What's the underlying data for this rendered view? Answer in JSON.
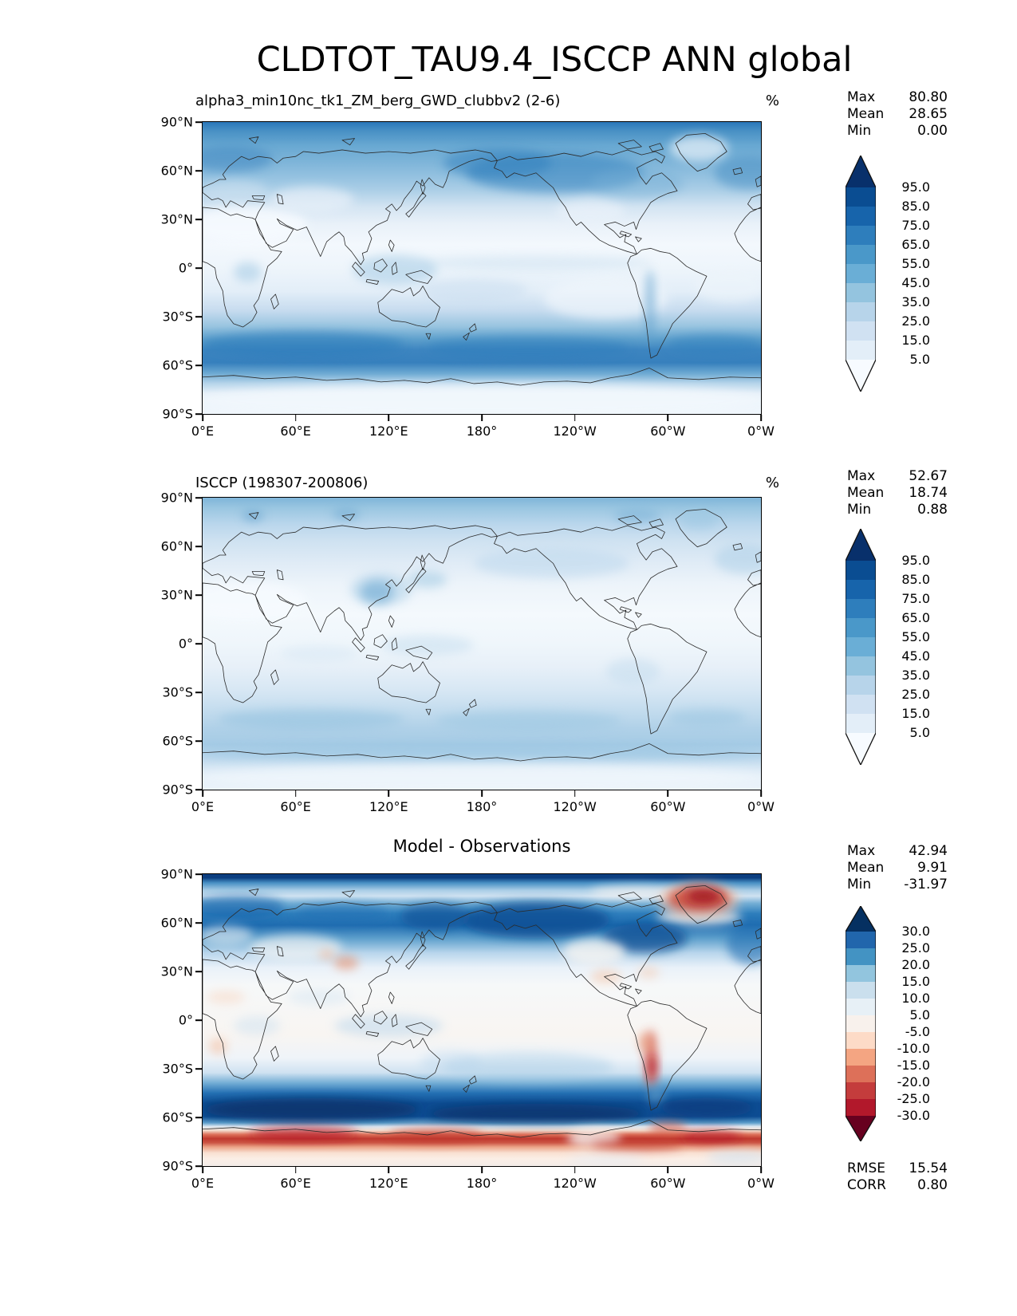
{
  "page": {
    "title": "CLDTOT_TAU9.4_ISCCP ANN global"
  },
  "axes": {
    "lat_ticks": [
      "90°N",
      "60°N",
      "30°N",
      "0°",
      "30°S",
      "60°S",
      "90°S"
    ],
    "lon_ticks": [
      "0°E",
      "60°E",
      "120°E",
      "180°",
      "120°W",
      "60°W",
      "0°W"
    ]
  },
  "panels": [
    {
      "id": "model",
      "title": "alpha3_min10nc_tk1_ZM_berg_GWD_clubbv2 (2-6)",
      "units": "%",
      "stats": [
        {
          "label": "Max",
          "value": "80.80"
        },
        {
          "label": "Mean",
          "value": "28.65"
        },
        {
          "label": "Min",
          "value": "0.00"
        }
      ],
      "colorbar": "percent"
    },
    {
      "id": "obs",
      "title": "ISCCP (198307-200806)",
      "units": "%",
      "stats": [
        {
          "label": "Max",
          "value": "52.67"
        },
        {
          "label": "Mean",
          "value": "18.74"
        },
        {
          "label": "Min",
          "value": "0.88"
        }
      ],
      "colorbar": "percent"
    },
    {
      "id": "diff",
      "title": "Model - Observations",
      "units": "",
      "stats": [
        {
          "label": "Max",
          "value": "42.94"
        },
        {
          "label": "Mean",
          "value": "9.91"
        },
        {
          "label": "Min",
          "value": "-31.97"
        }
      ],
      "extra_stats": [
        {
          "label": "RMSE",
          "value": "15.54"
        },
        {
          "label": "CORR",
          "value": "0.80"
        }
      ],
      "colorbar": "diff"
    }
  ],
  "colorbars": {
    "percent": {
      "colors": [
        "#08306b",
        "#0a4d92",
        "#1764ab",
        "#2e7ebc",
        "#4a98c9",
        "#6aaed6",
        "#94c4df",
        "#b7d4ea",
        "#d0e1f2",
        "#e3eef8",
        "#f7fbff"
      ],
      "labels": [
        "95.0",
        "85.0",
        "75.0",
        "65.0",
        "55.0",
        "45.0",
        "35.0",
        "25.0",
        "15.0",
        "5.0"
      ]
    },
    "diff": {
      "colors": [
        "#053061",
        "#2166ac",
        "#4393c3",
        "#92c5de",
        "#cadfed",
        "#e7f0f6",
        "#f8f1ec",
        "#fddbc7",
        "#f4a582",
        "#dd7059",
        "#c43c3c",
        "#b2182b",
        "#67001f"
      ],
      "labels": [
        "30.0",
        "25.0",
        "20.0",
        "15.0",
        "10.0",
        "5.0",
        "-5.0",
        "-10.0",
        "-15.0",
        "-20.0",
        "-25.0",
        "-30.0"
      ]
    }
  },
  "chart_data": [
    {
      "type": "heatmap",
      "subtype": "filled-contour global map",
      "title": "alpha3_min10nc_tk1_ZM_berg_GWD_clubbv2 (2-6)",
      "units": "%",
      "projection": "equirectangular",
      "lon_ticks": [
        "0°E",
        "60°E",
        "120°E",
        "180°",
        "120°W",
        "60°W",
        "0°W"
      ],
      "lat_ticks": [
        "90°N",
        "60°N",
        "30°N",
        "0°",
        "30°S",
        "60°S",
        "90°S"
      ],
      "levels": [
        5,
        15,
        25,
        35,
        45,
        55,
        65,
        75,
        85,
        95
      ],
      "colormap": "Blues",
      "extend": "both",
      "stats": {
        "max": 80.8,
        "mean": 28.65,
        "min": 0.0
      }
    },
    {
      "type": "heatmap",
      "subtype": "filled-contour global map",
      "title": "ISCCP (198307-200806)",
      "units": "%",
      "projection": "equirectangular",
      "lon_ticks": [
        "0°E",
        "60°E",
        "120°E",
        "180°",
        "120°W",
        "60°W",
        "0°W"
      ],
      "lat_ticks": [
        "90°N",
        "60°N",
        "30°N",
        "0°",
        "30°S",
        "60°S",
        "90°S"
      ],
      "levels": [
        5,
        15,
        25,
        35,
        45,
        55,
        65,
        75,
        85,
        95
      ],
      "colormap": "Blues",
      "extend": "both",
      "stats": {
        "max": 52.67,
        "mean": 18.74,
        "min": 0.88
      }
    },
    {
      "type": "heatmap",
      "subtype": "filled-contour global difference map",
      "title": "Model - Observations",
      "units": "%",
      "projection": "equirectangular",
      "lon_ticks": [
        "0°E",
        "60°E",
        "120°E",
        "180°",
        "120°W",
        "60°W",
        "0°W"
      ],
      "lat_ticks": [
        "90°N",
        "60°N",
        "30°N",
        "0°",
        "30°S",
        "60°S",
        "90°S"
      ],
      "levels": [
        -30,
        -25,
        -20,
        -15,
        -10,
        -5,
        5,
        10,
        15,
        20,
        25,
        30
      ],
      "colormap": "RdBu reversed (blue positive, red negative)",
      "extend": "both",
      "stats": {
        "max": 42.94,
        "mean": 9.91,
        "min": -31.97,
        "rmse": 15.54,
        "corr": 0.8
      }
    }
  ]
}
